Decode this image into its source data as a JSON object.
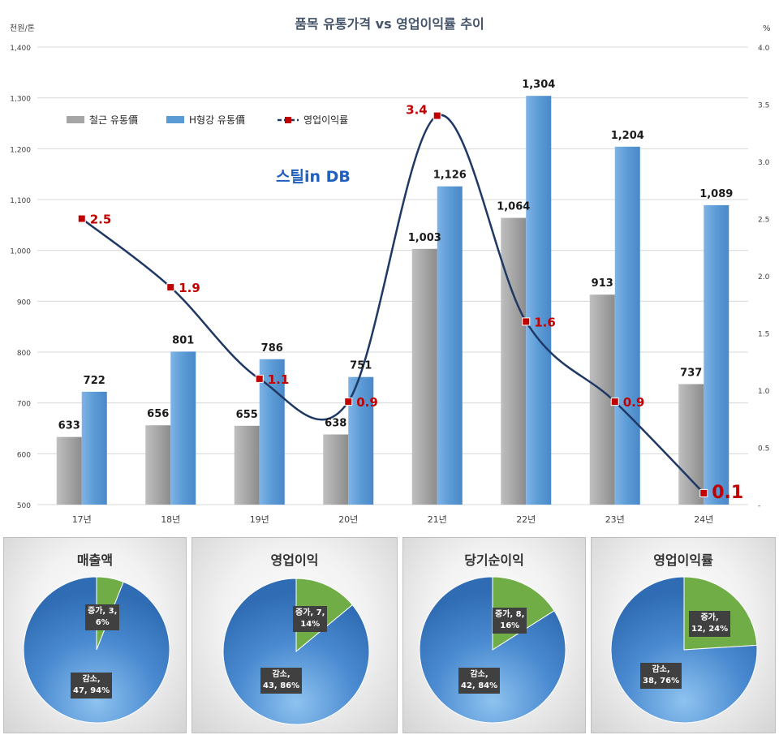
{
  "chart_data": [
    {
      "type": "bar",
      "title": "품목 유통가격 vs 영업이익률 추이",
      "ylabel_left": "천원/톤",
      "ylabel_right": "%",
      "categories": [
        "17년",
        "18년",
        "19년",
        "20년",
        "21년",
        "22년",
        "23년",
        "24년"
      ],
      "ylim_left": [
        500,
        1400
      ],
      "ylim_right": [
        0,
        4.0
      ],
      "yticks_left": [
        "500",
        "600",
        "700",
        "800",
        "900",
        "1,000",
        "1,100",
        "1,200",
        "1,300",
        "1,400"
      ],
      "yticks_right": [
        "-",
        "0.5",
        "1.0",
        "1.5",
        "2.0",
        "2.5",
        "3.0",
        "3.5",
        "4.0"
      ],
      "series": [
        {
          "name": "철근 유통價",
          "axis": "left",
          "color": "#a6a6a6",
          "values": [
            633,
            656,
            655,
            638,
            1003,
            1064,
            913,
            737
          ],
          "labels": [
            "633",
            "656",
            "655",
            "638",
            "1,003",
            "1,064",
            "913",
            "737"
          ]
        },
        {
          "name": "H형강 유통價",
          "axis": "left",
          "color": "#5b9bd5",
          "values": [
            722,
            801,
            786,
            751,
            1126,
            1304,
            1204,
            1089
          ],
          "labels": [
            "722",
            "801",
            "786",
            "751",
            "1,126",
            "1,304",
            "1,204",
            "1,089"
          ]
        },
        {
          "name": "영업이익률",
          "axis": "right",
          "type": "line",
          "color": "#1f3864",
          "marker_color": "#c00000",
          "values": [
            2.5,
            1.9,
            1.1,
            0.9,
            3.4,
            1.6,
            0.9,
            0.1
          ],
          "labels": [
            "2.5",
            "1.9",
            "1.1",
            "0.9",
            "3.4",
            "1.6",
            "0.9",
            "0.1"
          ]
        }
      ],
      "legend_position": "top-left"
    },
    {
      "type": "pie",
      "title": "매출액",
      "slices": [
        {
          "label": "증가, 3,\n6%",
          "value": 3,
          "color": "#70ad47"
        },
        {
          "label": "감소,\n47, 94%",
          "value": 47,
          "color": "#3a78c2"
        }
      ]
    },
    {
      "type": "pie",
      "title": "영업이익",
      "slices": [
        {
          "label": "증가, 7,\n14%",
          "value": 7,
          "color": "#70ad47"
        },
        {
          "label": "감소,\n43, 86%",
          "value": 43,
          "color": "#3a78c2"
        }
      ]
    },
    {
      "type": "pie",
      "title": "당기순이익",
      "slices": [
        {
          "label": "증가, 8,\n16%",
          "value": 8,
          "color": "#70ad47"
        },
        {
          "label": "감소,\n42, 84%",
          "value": 42,
          "color": "#3a78c2"
        }
      ]
    },
    {
      "type": "pie",
      "title": "영업이익률",
      "slices": [
        {
          "label": "증가,\n12, 24%",
          "value": 12,
          "color": "#70ad47"
        },
        {
          "label": "감소,\n38, 76%",
          "value": 38,
          "color": "#3a78c2"
        }
      ]
    }
  ],
  "watermark": "스틸in DB"
}
